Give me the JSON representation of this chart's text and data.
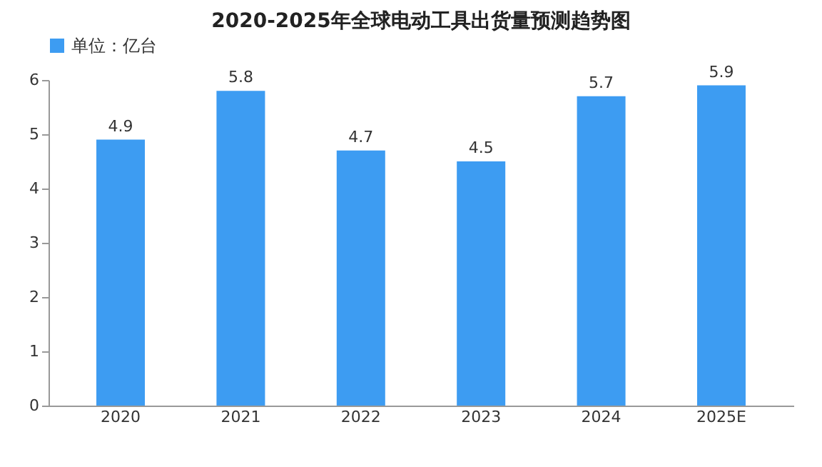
{
  "chart_data": {
    "type": "bar",
    "title": "2020-2025年全球电动工具出货量预测趋势图",
    "categories": [
      "2020",
      "2021",
      "2022",
      "2023",
      "2024",
      "2025E"
    ],
    "series": [
      {
        "name": "单位：亿台",
        "color": "#3d9cf2",
        "values": [
          4.9,
          5.8,
          4.7,
          4.5,
          5.7,
          5.9
        ]
      }
    ],
    "ylim": [
      0,
      6
    ],
    "yticks": [
      0,
      1,
      2,
      3,
      4,
      5,
      6
    ],
    "grid": false,
    "legend": "top",
    "data_labels": true
  }
}
